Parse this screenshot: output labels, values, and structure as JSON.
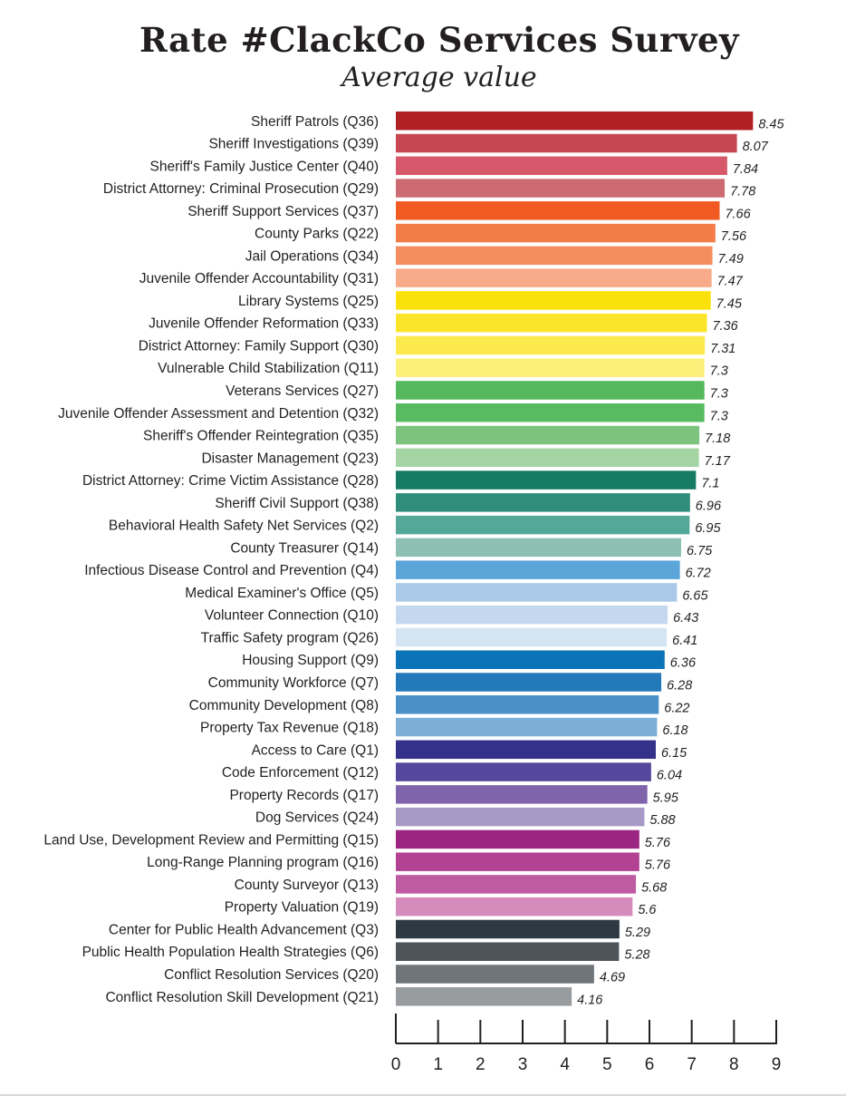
{
  "chart_data": {
    "type": "bar",
    "orientation": "horizontal",
    "title": "Rate #ClackCo Services Survey",
    "subtitle": "Average value",
    "xlim": [
      0,
      9
    ],
    "ticks": [
      "0",
      "1",
      "2",
      "3",
      "4",
      "5",
      "6",
      "7",
      "8",
      "9"
    ],
    "grid": false,
    "categories": [
      "Sheriff Patrols (Q36)",
      "Sheriff Investigations (Q39)",
      "Sheriff's Family Justice Center (Q40)",
      "District Attorney: Criminal Prosecution (Q29)",
      "Sheriff Support Services (Q37)",
      "County Parks (Q22)",
      "Jail Operations (Q34)",
      "Juvenile Offender Accountability (Q31)",
      "Library Systems (Q25)",
      "Juvenile Offender Reformation (Q33)",
      "District Attorney: Family Support (Q30)",
      "Vulnerable Child Stabilization (Q11)",
      "Veterans Services (Q27)",
      "Juvenile Offender Assessment and Detention (Q32)",
      "Sheriff's Offender Reintegration (Q35)",
      "Disaster Management (Q23)",
      "District Attorney: Crime Victim Assistance (Q28)",
      "Sheriff Civil Support (Q38)",
      "Behavioral Health Safety Net Services (Q2)",
      "County Treasurer (Q14)",
      "Infectious Disease Control and Prevention (Q4)",
      "Medical Examiner's Office (Q5)",
      "Volunteer Connection (Q10)",
      "Traffic Safety program (Q26)",
      "Housing Support (Q9)",
      "Community Workforce (Q7)",
      "Community Development (Q8)",
      "Property Tax Revenue (Q18)",
      "Access to Care (Q1)",
      "Code Enforcement (Q12)",
      "Property Records (Q17)",
      "Dog Services (Q24)",
      "Land Use, Development Review and Permitting (Q15)",
      "Long-Range Planning program (Q16)",
      "County Surveyor (Q13)",
      "Property Valuation (Q19)",
      "Center for Public Health Advancement (Q3)",
      "Public Health Population Health Strategies (Q6)",
      "Conflict Resolution Services (Q20)",
      "Conflict Resolution Skill Development (Q21)"
    ],
    "values": [
      8.45,
      8.07,
      7.84,
      7.78,
      7.66,
      7.56,
      7.49,
      7.47,
      7.45,
      7.36,
      7.31,
      7.3,
      7.3,
      7.3,
      7.18,
      7.17,
      7.1,
      6.96,
      6.95,
      6.75,
      6.72,
      6.65,
      6.43,
      6.41,
      6.36,
      6.28,
      6.22,
      6.18,
      6.15,
      6.04,
      5.95,
      5.88,
      5.76,
      5.76,
      5.68,
      5.6,
      5.29,
      5.28,
      4.69,
      4.16
    ],
    "value_labels": [
      "8.45",
      "8.07",
      "7.84",
      "7.78",
      "7.66",
      "7.56",
      "7.49",
      "7.47",
      "7.45",
      "7.36",
      "7.31",
      "7.3",
      "7.3",
      "7.3",
      "7.18",
      "7.17",
      "7.1",
      "6.96",
      "6.95",
      "6.75",
      "6.72",
      "6.65",
      "6.43",
      "6.41",
      "6.36",
      "6.28",
      "6.22",
      "6.18",
      "6.15",
      "6.04",
      "5.95",
      "5.88",
      "5.76",
      "5.76",
      "5.68",
      "5.6",
      "5.29",
      "5.28",
      "4.69",
      "4.16"
    ],
    "colors": [
      "#b01f24",
      "#c8464f",
      "#d6586a",
      "#cc6c72",
      "#f15a22",
      "#f47c47",
      "#f68d5f",
      "#f8ab89",
      "#fbe10a",
      "#fbe52a",
      "#fce94c",
      "#fdf07a",
      "#55b85c",
      "#58ba61",
      "#7cc47d",
      "#a3d4a1",
      "#177a62",
      "#2f8e7b",
      "#53a897",
      "#8dbfb3",
      "#5ba5d9",
      "#aac9e8",
      "#c3d8ee",
      "#d5e4f3",
      "#0d73b9",
      "#2479bb",
      "#4a90c6",
      "#7daed5",
      "#33318a",
      "#54479c",
      "#8064ab",
      "#a898c6",
      "#9c2582",
      "#b34293",
      "#bf5ba1",
      "#d58bbc",
      "#2f3941",
      "#4e545a",
      "#70757a",
      "#999c9f"
    ]
  }
}
